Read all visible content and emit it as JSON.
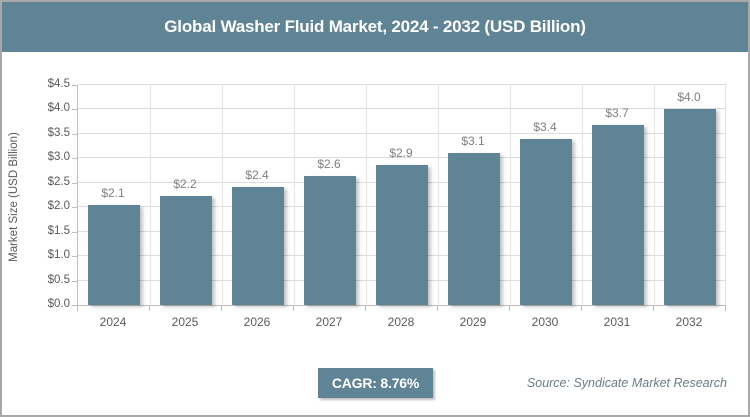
{
  "title": "Global Washer Fluid Market, 2024 - 2032 (USD Billion)",
  "colors": {
    "accent": "#5f8496",
    "title_text": "#ffffff",
    "gridline": "#dcdcdc",
    "axis_line": "#bfbfbf",
    "tick_text": "#595959",
    "bar_label_text": "#7f7f7f",
    "source_text": "#6b7c87",
    "frame_border": "#a8a8a8"
  },
  "chart_data": {
    "type": "bar",
    "title": "Global Washer Fluid Market, 2024 - 2032 (USD Billion)",
    "categories": [
      "2024",
      "2025",
      "2026",
      "2027",
      "2028",
      "2029",
      "2030",
      "2031",
      "2032"
    ],
    "values": [
      2.1,
      2.2,
      2.4,
      2.6,
      2.9,
      3.1,
      3.4,
      3.7,
      4.0
    ],
    "bar_labels": [
      "$2.1",
      "$2.2",
      "$2.4",
      "$2.6",
      "$2.9",
      "$3.1",
      "$3.4",
      "$3.7",
      "$4.0"
    ],
    "bar_heights_plotted": [
      2.05,
      2.23,
      2.42,
      2.63,
      2.86,
      3.11,
      3.4,
      3.69,
      4.01
    ],
    "xlabel": "",
    "ylabel": "Market Size (USD Billion)",
    "ylim": [
      0,
      4.5
    ],
    "y_ticks": [
      "$0.0",
      "$0.5",
      "$1.0",
      "$1.5",
      "$2.0",
      "$2.5",
      "$3.0",
      "$3.5",
      "$4.0",
      "$4.5"
    ],
    "grid": true,
    "legend": false,
    "bar_color": "#5f8496"
  },
  "footer": {
    "cagr_label": "CAGR: 8.76%",
    "source": "Source: Syndicate Market Research"
  }
}
